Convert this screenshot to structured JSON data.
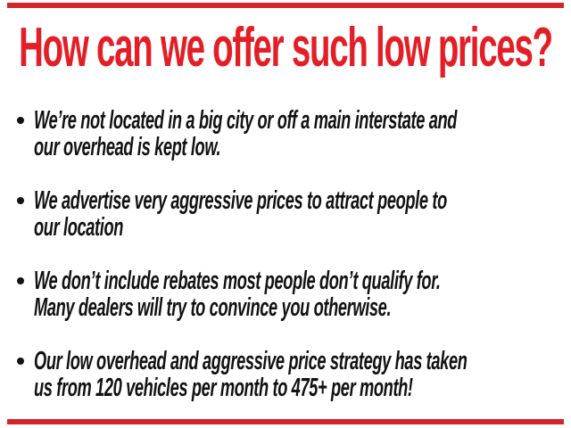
{
  "page": {
    "background_color": "#ffffff",
    "text_color": "#121212"
  },
  "decor": {
    "top_bar_color": "#d6242b",
    "bottom_bar_color": "#d6242b"
  },
  "title": {
    "text": "How can we offer such low prices?",
    "color": "#e41e26"
  },
  "bullets": [
    {
      "lines": [
        "We’re not located in a big city or off a main interstate and",
        "our overhead is kept low."
      ]
    },
    {
      "lines": [
        "We advertise very aggressive prices to attract people to",
        "our location"
      ]
    },
    {
      "lines": [
        "We don’t include rebates most people don’t qualify for.",
        "Many dealers will try to convince you otherwise."
      ]
    },
    {
      "lines": [
        "Our low overhead and aggressive price strategy has taken",
        "us from 120 vehicles per month to 475+ per month!"
      ]
    }
  ]
}
